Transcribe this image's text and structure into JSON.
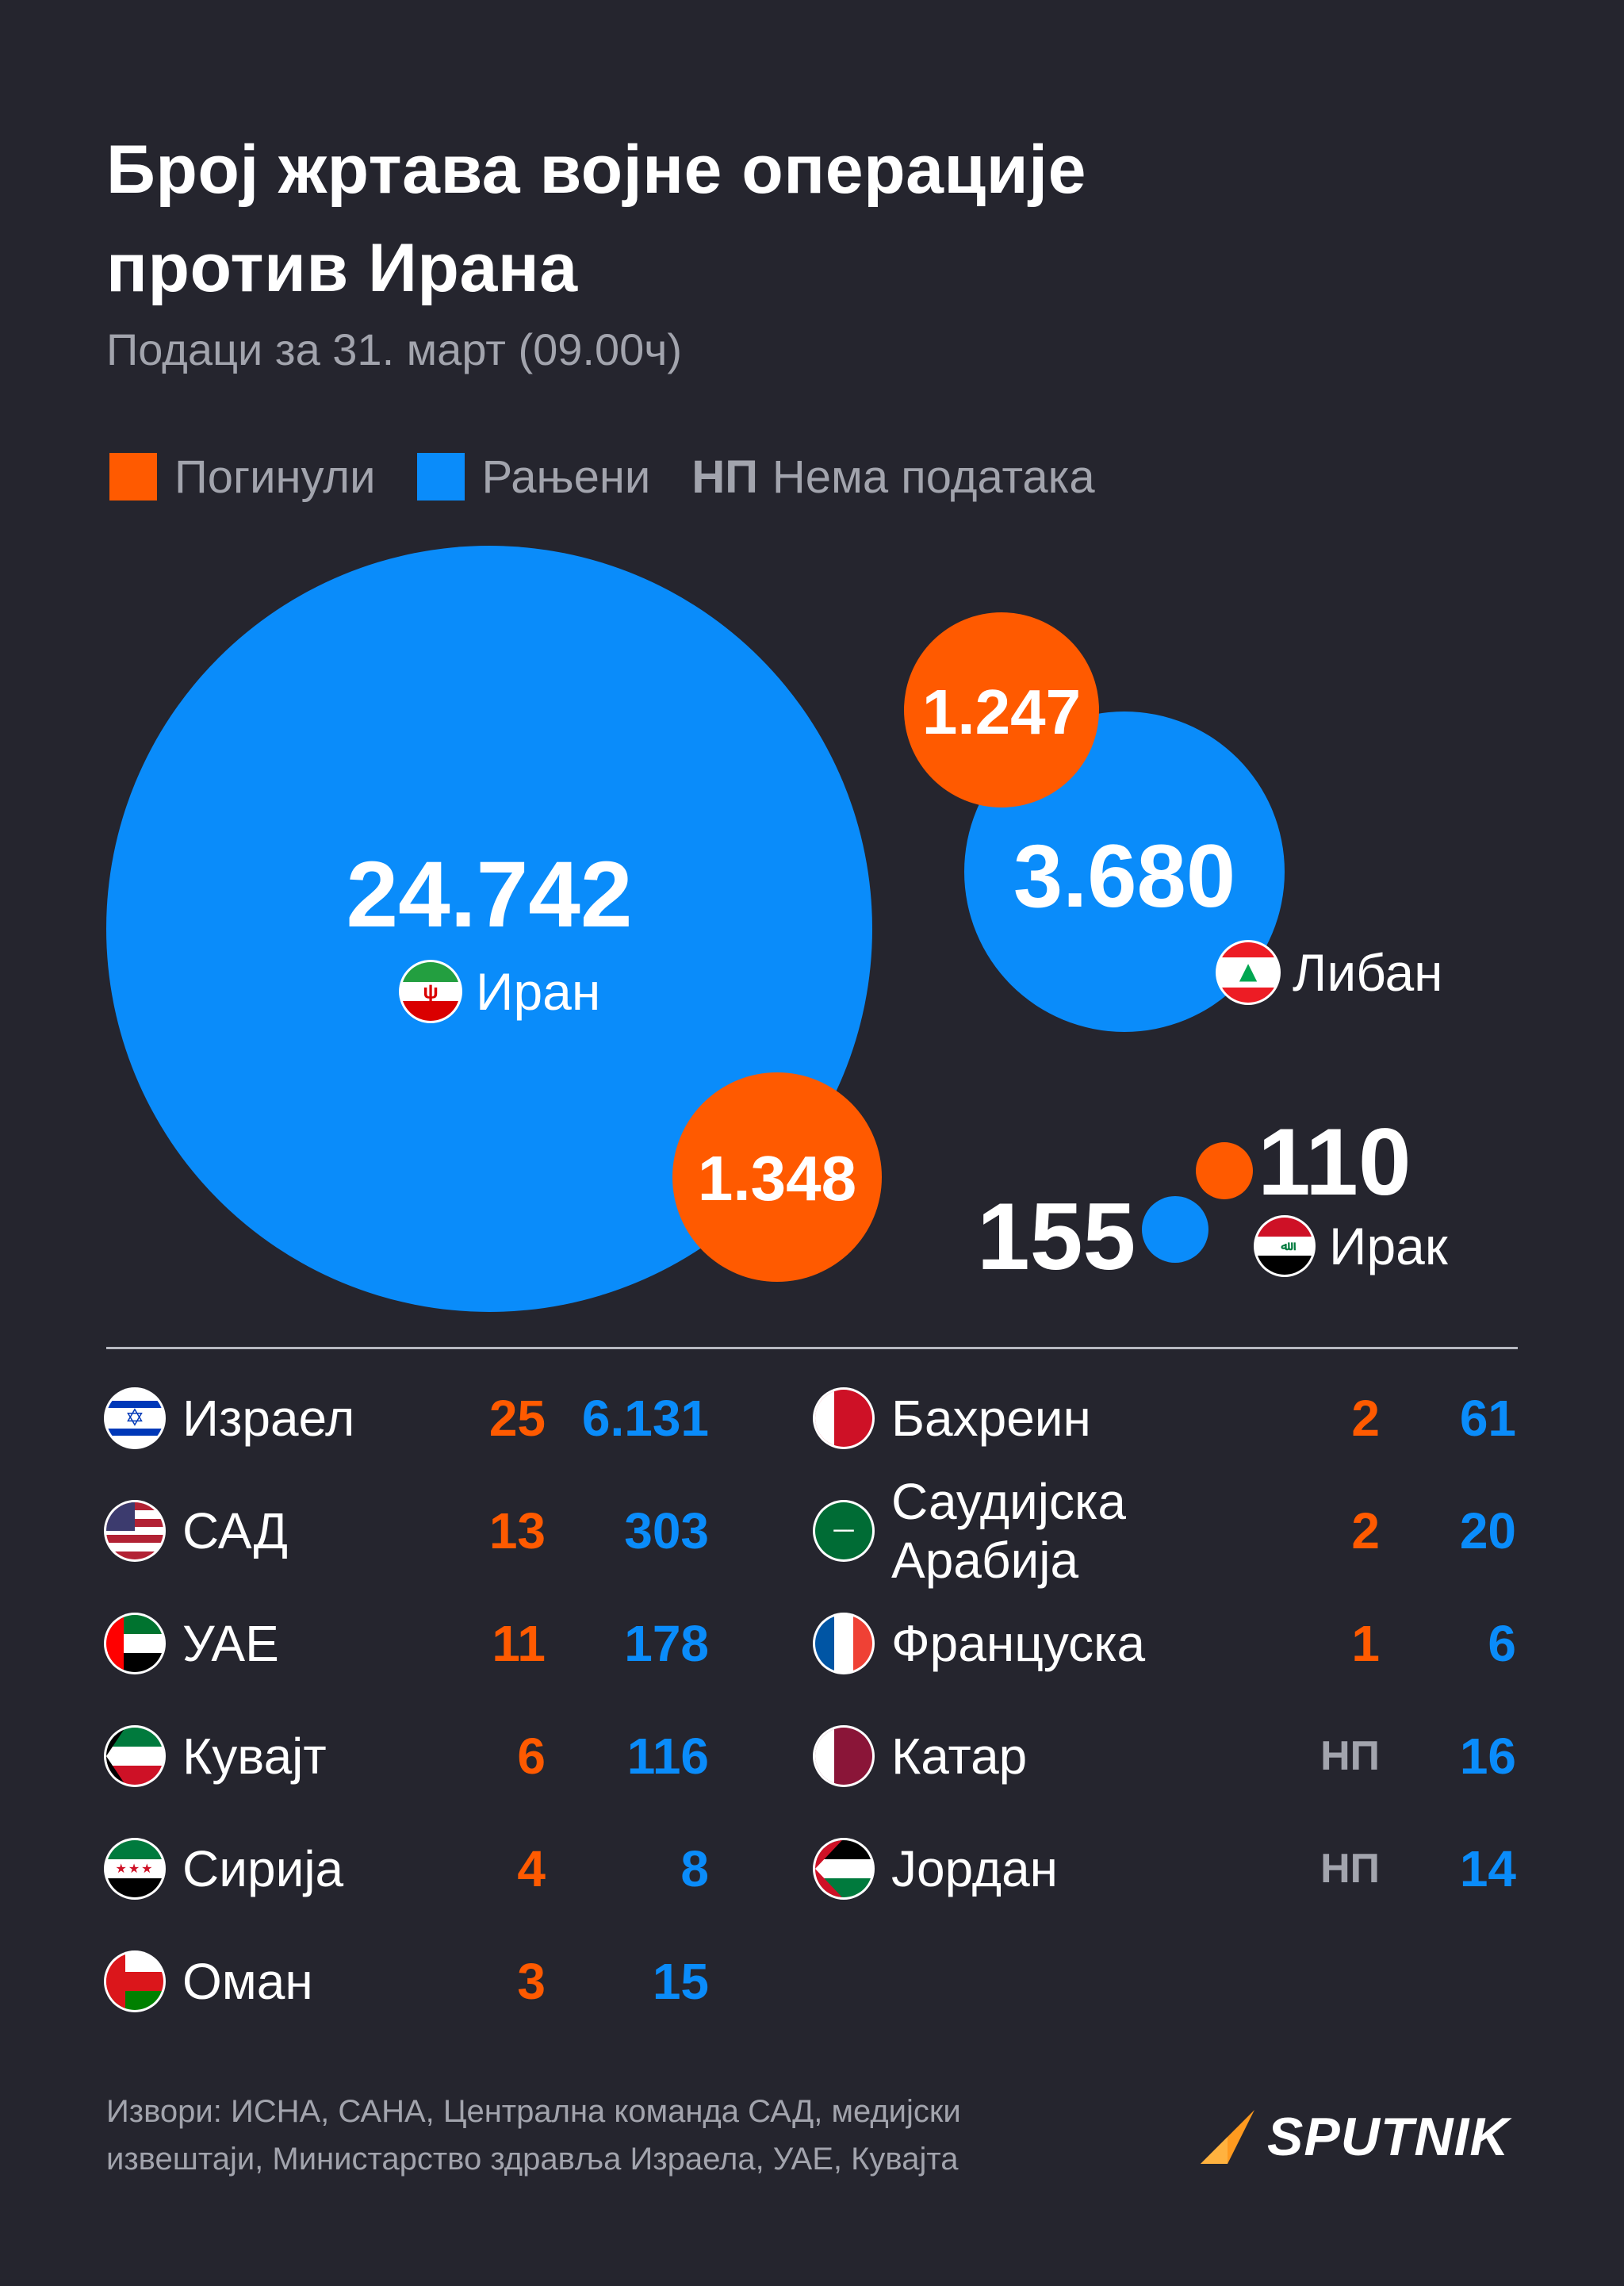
{
  "title_line1": "Број жртава војне операције",
  "title_line2": "против Ирана",
  "subtitle": "Подаци за 31. март (09.00ч)",
  "legend": {
    "killed": "Погинули",
    "wounded": "Рањени",
    "np_abbr": "НП",
    "np_label": "Нема података"
  },
  "colors": {
    "killed": "#ff5a00",
    "wounded": "#0a8cfa",
    "background": "#25252e"
  },
  "chart_data": {
    "type": "bubble",
    "series": [
      {
        "name": "Погинули",
        "color": "#ff5a00"
      },
      {
        "name": "Рањени",
        "color": "#0a8cfa"
      }
    ],
    "bubbles": [
      {
        "country": "Иран",
        "killed": 1348,
        "wounded": 24742,
        "killed_label": "1.348",
        "wounded_label": "24.742"
      },
      {
        "country": "Либан",
        "killed": 1247,
        "wounded": 3680,
        "killed_label": "1.247",
        "wounded_label": "3.680"
      },
      {
        "country": "Ирак",
        "killed": 110,
        "wounded": 155,
        "killed_label": "110",
        "wounded_label": "155"
      }
    ],
    "table_left": [
      {
        "country": "Израел",
        "killed": "25",
        "wounded": "6.131",
        "flag": "israel-flag-icon"
      },
      {
        "country": "САД",
        "killed": "13",
        "wounded": "303",
        "flag": "usa-flag-icon"
      },
      {
        "country": "УАЕ",
        "killed": "11",
        "wounded": "178",
        "flag": "uae-flag-icon"
      },
      {
        "country": "Кувајт",
        "killed": "6",
        "wounded": "116",
        "flag": "kuwait-flag-icon"
      },
      {
        "country": "Сирија",
        "killed": "4",
        "wounded": "8",
        "flag": "syria-flag-icon"
      },
      {
        "country": "Оман",
        "killed": "3",
        "wounded": "15",
        "flag": "oman-flag-icon"
      }
    ],
    "table_right": [
      {
        "country": "Бахреин",
        "killed": "2",
        "wounded": "61",
        "flag": "bahrain-flag-icon"
      },
      {
        "country_line1": "Саудијска",
        "country_line2": "Арабија",
        "killed": "2",
        "wounded": "20",
        "flag": "saudi-flag-icon"
      },
      {
        "country": "Француска",
        "killed": "1",
        "wounded": "6",
        "flag": "france-flag-icon"
      },
      {
        "country": "Катар",
        "killed": "НП",
        "wounded": "16",
        "flag": "qatar-flag-icon"
      },
      {
        "country": "Јордан",
        "killed": "НП",
        "wounded": "14",
        "flag": "jordan-flag-icon"
      }
    ]
  },
  "sources_line1": "Извори: ИСНА, САНА, Централна команда САД, медијски",
  "sources_line2": "извештаји, Министарство здравља Израела, УАЕ, Кувајта",
  "brand": "SPUTNIK"
}
